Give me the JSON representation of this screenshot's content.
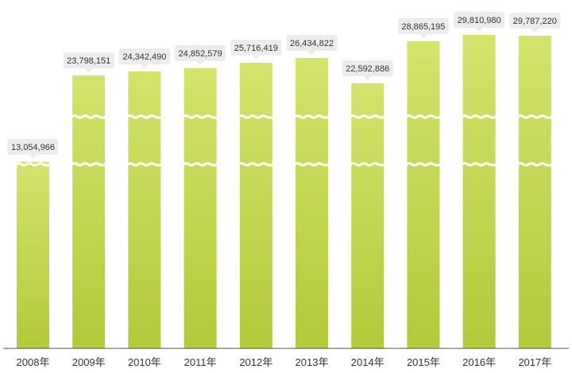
{
  "chart_data": {
    "type": "bar",
    "categories": [
      "2008年",
      "2009年",
      "2010年",
      "2011年",
      "2012年",
      "2013年",
      "2014年",
      "2015年",
      "2016年",
      "2017年"
    ],
    "values": [
      13054966,
      23798151,
      24342490,
      24852579,
      25716419,
      26434822,
      22592886,
      28865195,
      29810980,
      29787220
    ],
    "value_labels": [
      "13,054,966",
      "23,798,151",
      "24,342,490",
      "24,852,579",
      "25,716,419",
      "26,434,822",
      "22,592,886",
      "28,865,195",
      "29,810,980",
      "29,787,220"
    ],
    "axis_break": true,
    "grid": false,
    "title": "",
    "xlabel": "",
    "ylabel": ""
  },
  "colors": {
    "bar_top": "#d3e36c",
    "bar_bottom": "#b3c93a",
    "label_bg": "#ececec",
    "axis": "#555555",
    "text": "#333333"
  }
}
